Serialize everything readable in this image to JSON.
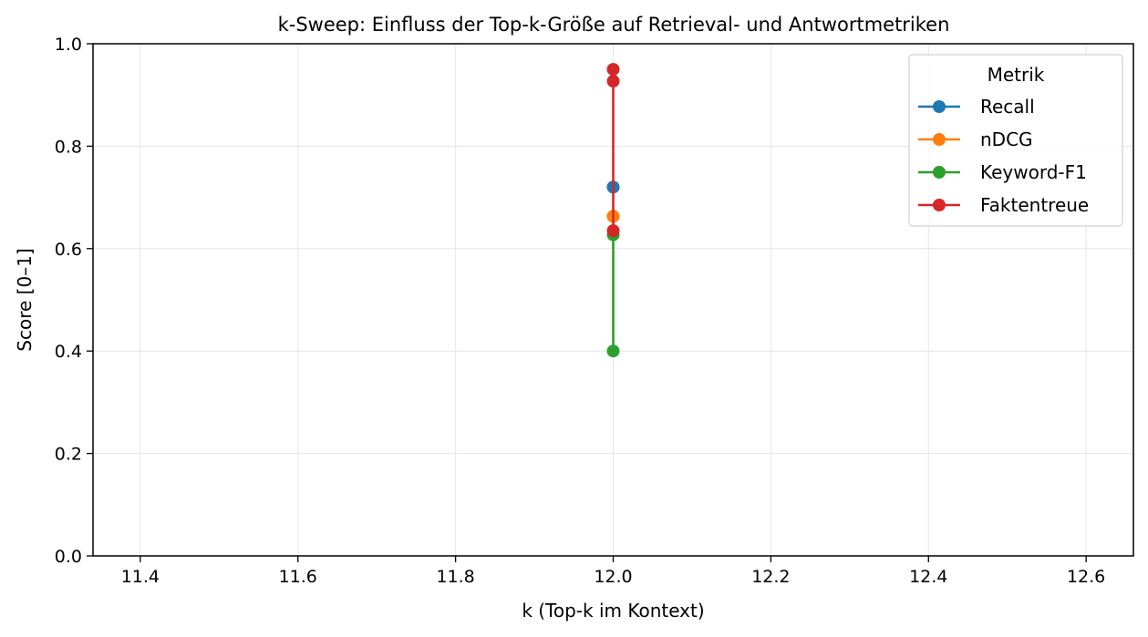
{
  "chart_data": {
    "type": "line",
    "title": "k-Sweep: Einfluss der Top-k-Größe auf Retrieval- und Antwortmetriken",
    "xlabel": "k (Top-k im Kontext)",
    "ylabel": "Score [0–1]",
    "xlim": [
      11.34,
      12.66
    ],
    "ylim": [
      0.0,
      1.0
    ],
    "x_ticks": [
      11.4,
      11.6,
      11.8,
      12.0,
      12.2,
      12.4,
      12.6
    ],
    "x_tick_labels": [
      "11.4",
      "11.6",
      "11.8",
      "12.0",
      "12.2",
      "12.4",
      "12.6"
    ],
    "y_ticks": [
      0.0,
      0.2,
      0.4,
      0.6,
      0.8,
      1.0
    ],
    "y_tick_labels": [
      "0.0",
      "0.2",
      "0.4",
      "0.6",
      "0.8",
      "1.0"
    ],
    "grid": true,
    "legend": {
      "title": "Metrik",
      "placement": "top-right"
    },
    "series": [
      {
        "name": "Recall",
        "color": "#1f77b4",
        "x": [
          12,
          12
        ],
        "y": [
          0.72,
          0.72
        ]
      },
      {
        "name": "nDCG",
        "color": "#ff7f0e",
        "x": [
          12,
          12
        ],
        "y": [
          0.663,
          0.663
        ]
      },
      {
        "name": "Keyword-F1",
        "color": "#2ca02c",
        "x": [
          12,
          12
        ],
        "y": [
          0.4,
          0.627
        ]
      },
      {
        "name": "Faktentreue",
        "color": "#d62728",
        "x": [
          12,
          12,
          12
        ],
        "y": [
          0.95,
          0.927,
          0.635
        ]
      }
    ]
  }
}
